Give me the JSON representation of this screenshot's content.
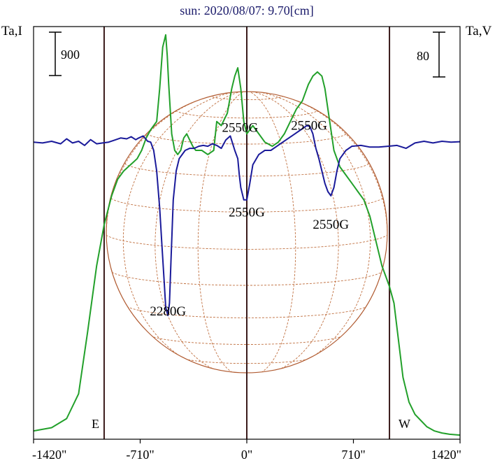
{
  "chart_data": {
    "type": "line",
    "title": "sun: 2020/08/07: 9.70[cm]",
    "left_axis_label": "Ta,I",
    "right_axis_label": "Ta,V",
    "left_scale_bar": "900",
    "right_scale_bar": "80",
    "x_ticks": [
      {
        "value": -1420,
        "label": "-1420\""
      },
      {
        "value": -710,
        "label": "-710\""
      },
      {
        "value": 0,
        "label": "0\""
      },
      {
        "value": 710,
        "label": "710\""
      },
      {
        "value": 1420,
        "label": "1420\""
      }
    ],
    "xlim": [
      -1420,
      1420
    ],
    "limb_markers": [
      {
        "x": -950,
        "label": "E"
      },
      {
        "x": 950,
        "label": "W"
      }
    ],
    "center_marker_x": 0,
    "disk_radius_arcsec": 950,
    "annotations": [
      {
        "text": "2550G",
        "x": -45,
        "y_level": 0.745
      },
      {
        "text": "2550G",
        "x": 415,
        "y_level": 0.75
      },
      {
        "text": "2550G",
        "x": 0,
        "y_level": 0.54
      },
      {
        "text": "2550G",
        "x": 560,
        "y_level": 0.51
      },
      {
        "text": "2280G",
        "x": -525,
        "y_level": 0.3
      }
    ],
    "colors": {
      "intensity": "#22a02a",
      "polarization": "#1a1a9a",
      "frame": "#000000",
      "marker": "#3a1a1a",
      "disk": "#b05a30",
      "title": "#1a1a6a"
    },
    "series": [
      {
        "name": "",
        "axis": "left",
        "color": "#22a02a",
        "x": [
          -1420,
          -1300,
          -1200,
          -1120,
          -1060,
          -1000,
          -950,
          -900,
          -860,
          -820,
          -790,
          -760,
          -730,
          -700,
          -670,
          -640,
          -600,
          -580,
          -560,
          -540,
          -530,
          -520,
          -500,
          -480,
          -460,
          -440,
          -420,
          -400,
          -380,
          -360,
          -340,
          -300,
          -260,
          -220,
          -200,
          -170,
          -130,
          -100,
          -80,
          -60,
          -40,
          -20,
          0,
          20,
          40,
          80,
          120,
          170,
          210,
          250,
          290,
          330,
          370,
          410,
          440,
          470,
          500,
          520,
          540,
          560,
          580,
          620,
          660,
          700,
          740,
          780,
          820,
          860,
          900,
          930,
          950,
          980,
          1000,
          1040,
          1080,
          1120,
          1160,
          1200,
          1250,
          1300,
          1350,
          1420
        ],
        "y": [
          0.02,
          0.028,
          0.05,
          0.11,
          0.26,
          0.42,
          0.52,
          0.59,
          0.63,
          0.65,
          0.66,
          0.67,
          0.68,
          0.7,
          0.73,
          0.75,
          0.77,
          0.85,
          0.95,
          0.98,
          0.93,
          0.86,
          0.74,
          0.7,
          0.69,
          0.7,
          0.73,
          0.74,
          0.725,
          0.71,
          0.7,
          0.7,
          0.69,
          0.7,
          0.77,
          0.76,
          0.79,
          0.85,
          0.88,
          0.9,
          0.85,
          0.77,
          0.74,
          0.75,
          0.76,
          0.74,
          0.72,
          0.71,
          0.72,
          0.74,
          0.77,
          0.8,
          0.82,
          0.86,
          0.88,
          0.89,
          0.88,
          0.85,
          0.8,
          0.75,
          0.7,
          0.66,
          0.64,
          0.62,
          0.6,
          0.58,
          0.54,
          0.48,
          0.42,
          0.39,
          0.37,
          0.33,
          0.27,
          0.15,
          0.09,
          0.06,
          0.045,
          0.03,
          0.02,
          0.015,
          0.012,
          0.01
        ]
      },
      {
        "name": "",
        "axis": "right",
        "color": "#1a1a9a",
        "x": [
          -1420,
          -1360,
          -1300,
          -1240,
          -1200,
          -1160,
          -1120,
          -1080,
          -1040,
          -1000,
          -960,
          -920,
          -880,
          -840,
          -800,
          -770,
          -740,
          -720,
          -690,
          -660,
          -640,
          -620,
          -600,
          -580,
          -565,
          -550,
          -540,
          -525,
          -515,
          -505,
          -490,
          -470,
          -450,
          -430,
          -410,
          -380,
          -350,
          -320,
          -290,
          -260,
          -230,
          -200,
          -170,
          -140,
          -110,
          -80,
          -60,
          -50,
          -40,
          -20,
          0,
          20,
          40,
          80,
          120,
          160,
          200,
          240,
          280,
          320,
          360,
          400,
          420,
          440,
          460,
          480,
          500,
          520,
          540,
          560,
          580,
          600,
          620,
          660,
          700,
          760,
          820,
          880,
          940,
          1000,
          1060,
          1120,
          1180,
          1240,
          1300,
          1360,
          1420
        ],
        "y": [
          0.72,
          0.718,
          0.722,
          0.716,
          0.728,
          0.718,
          0.722,
          0.712,
          0.726,
          0.716,
          0.718,
          0.72,
          0.725,
          0.73,
          0.728,
          0.733,
          0.726,
          0.73,
          0.735,
          0.722,
          0.72,
          0.7,
          0.65,
          0.56,
          0.47,
          0.38,
          0.32,
          0.3,
          0.33,
          0.43,
          0.58,
          0.65,
          0.68,
          0.69,
          0.7,
          0.705,
          0.705,
          0.71,
          0.712,
          0.71,
          0.716,
          0.712,
          0.705,
          0.725,
          0.735,
          0.7,
          0.68,
          0.64,
          0.61,
          0.58,
          0.58,
          0.62,
          0.665,
          0.69,
          0.7,
          0.7,
          0.71,
          0.72,
          0.73,
          0.74,
          0.75,
          0.76,
          0.758,
          0.74,
          0.705,
          0.68,
          0.65,
          0.62,
          0.6,
          0.59,
          0.61,
          0.65,
          0.68,
          0.7,
          0.71,
          0.712,
          0.708,
          0.708,
          0.71,
          0.712,
          0.705,
          0.718,
          0.722,
          0.718,
          0.722,
          0.72,
          0.721
        ]
      }
    ]
  }
}
